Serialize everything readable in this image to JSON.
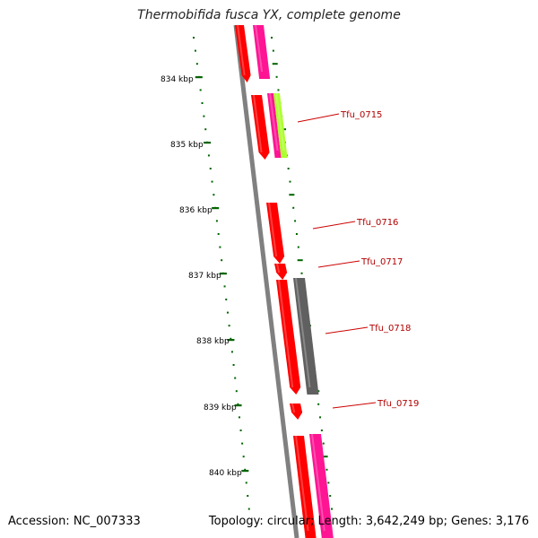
{
  "title": "Thermobifida fusca YX, complete genome",
  "accession": "Accession: NC_007333",
  "stats": "Topology: circular; Length: 3,642,249 bp; Genes: 3,176",
  "scale_labels": [
    "834 kbp",
    "835 kbp",
    "836 kbp",
    "837 kbp",
    "838 kbp",
    "839 kbp",
    "840 kbp"
  ],
  "gene_labels": [
    "Tfu_0715",
    "Tfu_0716",
    "Tfu_0717",
    "Tfu_0718",
    "Tfu_0719"
  ],
  "colors": {
    "backbone": "#808080",
    "cds": "#ff0000",
    "gene_alt": "#ff1493",
    "gene_green": "#adff2f",
    "gene_gray": "#606060",
    "scale_ticks": "#006400",
    "label_line": "#cc0000"
  }
}
